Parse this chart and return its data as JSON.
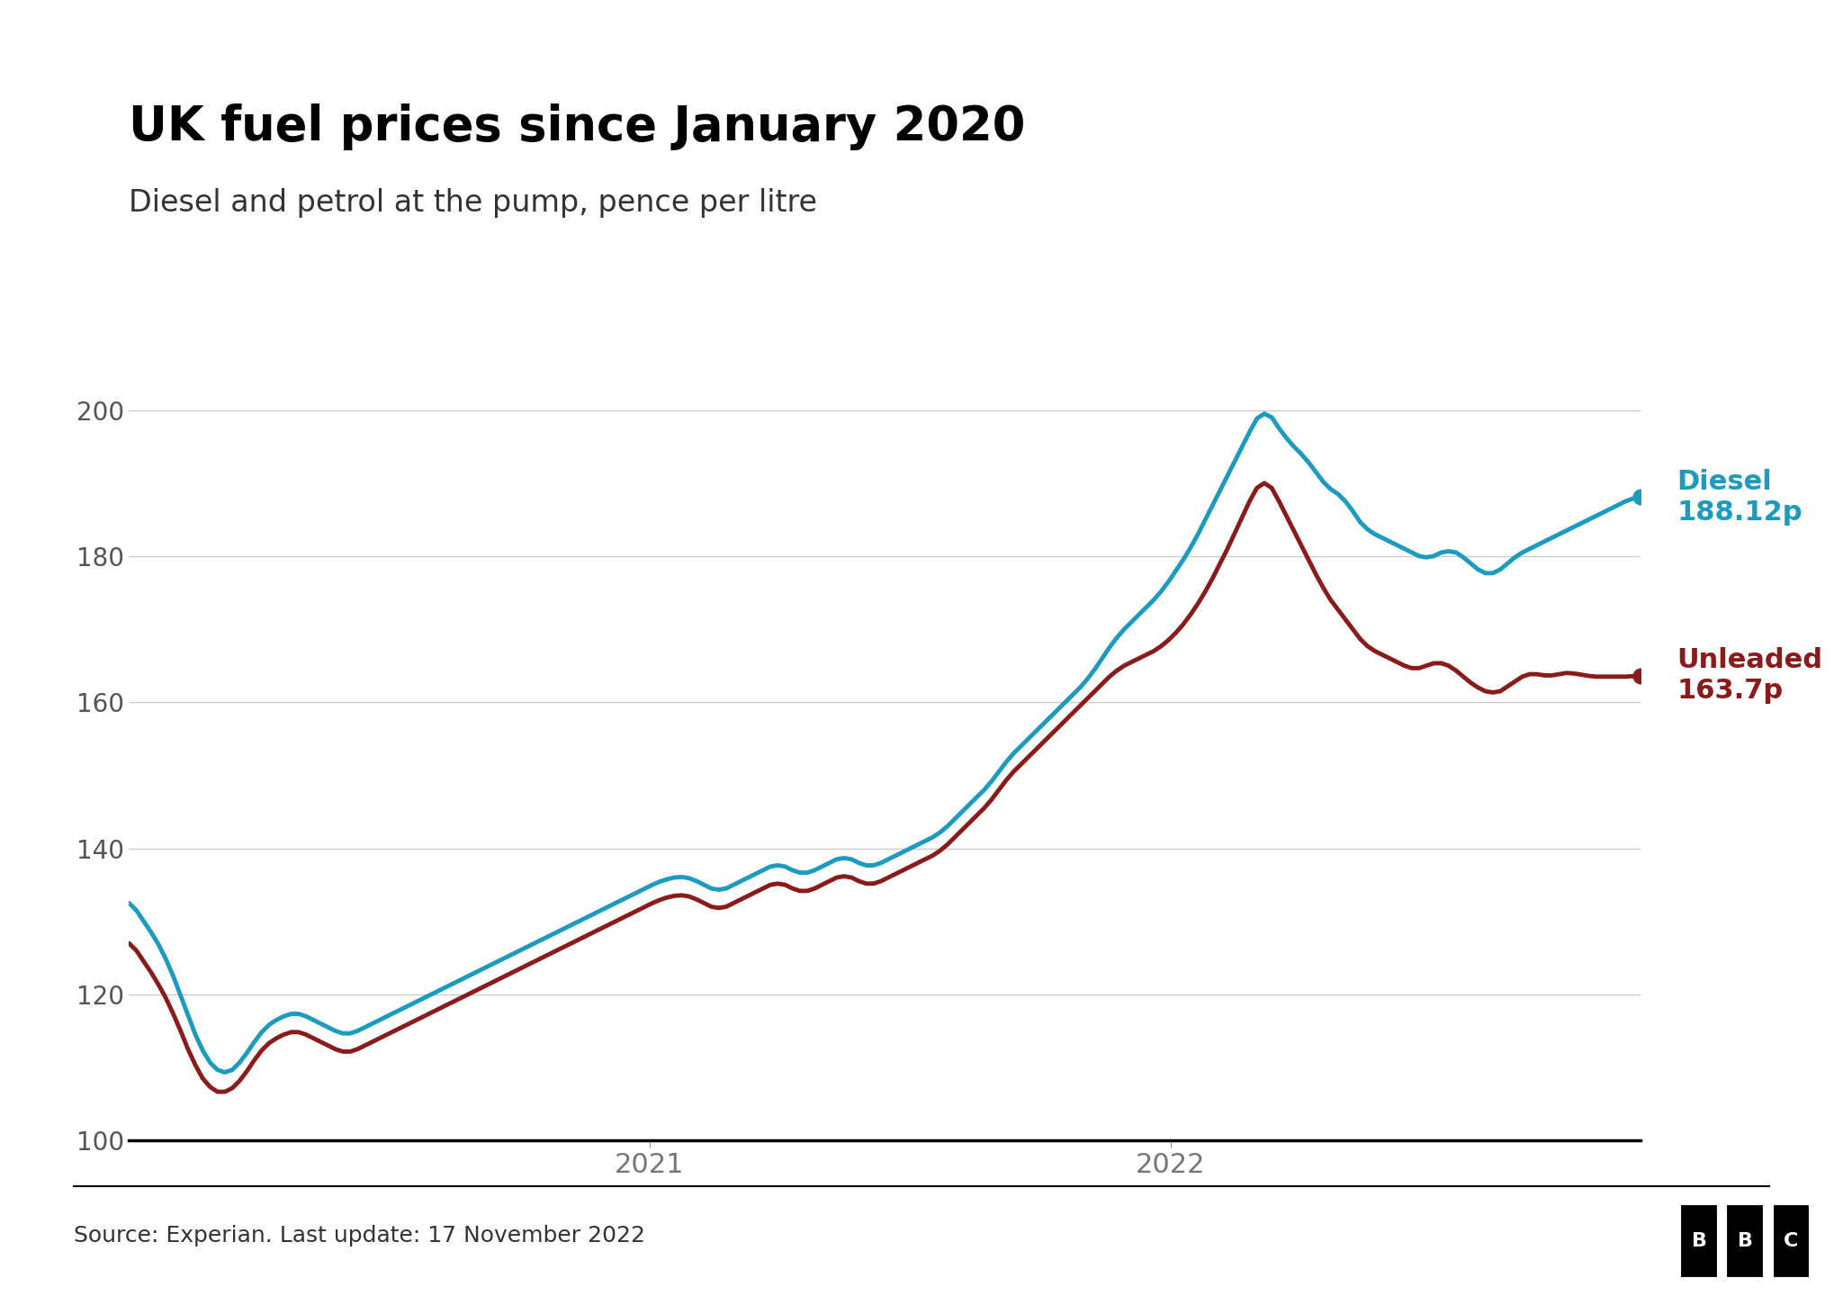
{
  "title": "UK fuel prices since January 2020",
  "subtitle": "Diesel and petrol at the pump, pence per litre",
  "source_text": "Source: Experian. Last update: 17 November 2022",
  "diesel_color": "#1a9bbf",
  "unleaded_color": "#8b1a1a",
  "diesel_label": "Diesel",
  "diesel_value": "188.12p",
  "unleaded_label": "Unleaded",
  "unleaded_value": "163.7p",
  "ylim": [
    100,
    210
  ],
  "yticks": [
    100,
    120,
    140,
    160,
    180,
    200
  ],
  "background_color": "#ffffff",
  "title_fontsize": 38,
  "subtitle_fontsize": 24,
  "diesel_data": [
    133.0,
    131.5,
    130.0,
    128.5,
    127.0,
    125.0,
    122.5,
    120.0,
    117.0,
    114.5,
    112.0,
    110.5,
    109.5,
    109.0,
    109.5,
    110.5,
    112.0,
    113.5,
    115.0,
    116.0,
    116.5,
    117.0,
    117.5,
    117.5,
    117.0,
    116.5,
    116.0,
    115.5,
    115.0,
    114.5,
    114.5,
    115.0,
    115.5,
    116.0,
    116.5,
    117.0,
    117.5,
    118.0,
    118.5,
    119.0,
    119.5,
    120.0,
    120.5,
    121.0,
    121.5,
    122.0,
    122.5,
    123.0,
    123.5,
    124.0,
    124.5,
    125.0,
    125.5,
    126.0,
    126.5,
    127.0,
    127.5,
    128.0,
    128.5,
    129.0,
    129.5,
    130.0,
    130.5,
    131.0,
    131.5,
    132.0,
    132.5,
    133.0,
    133.5,
    134.0,
    134.5,
    135.0,
    135.5,
    135.8,
    136.0,
    136.2,
    136.0,
    135.5,
    135.0,
    134.5,
    134.0,
    134.5,
    135.0,
    135.5,
    136.0,
    136.5,
    137.0,
    137.5,
    138.0,
    137.5,
    137.0,
    136.5,
    136.5,
    137.0,
    137.5,
    138.0,
    138.5,
    139.0,
    138.5,
    138.0,
    137.5,
    137.5,
    138.0,
    138.5,
    139.0,
    139.5,
    140.0,
    140.5,
    141.0,
    141.5,
    142.0,
    143.0,
    144.0,
    145.0,
    146.0,
    147.0,
    148.0,
    149.0,
    150.5,
    152.0,
    153.0,
    154.0,
    155.0,
    156.0,
    157.0,
    158.0,
    159.0,
    160.0,
    161.0,
    162.0,
    163.0,
    164.5,
    166.0,
    167.5,
    169.0,
    170.0,
    171.0,
    172.0,
    173.0,
    174.0,
    175.0,
    176.5,
    178.0,
    179.5,
    181.0,
    183.0,
    185.0,
    187.0,
    189.0,
    191.0,
    193.0,
    195.0,
    197.0,
    199.0,
    200.5,
    199.0,
    197.5,
    196.0,
    195.0,
    194.0,
    193.0,
    191.5,
    190.0,
    189.0,
    188.5,
    188.0,
    186.0,
    184.5,
    183.5,
    183.0,
    182.5,
    182.0,
    181.5,
    181.0,
    180.5,
    180.0,
    179.5,
    180.0,
    180.5,
    181.0,
    180.5,
    180.0,
    179.0,
    178.0,
    177.5,
    177.5,
    178.0,
    179.0,
    180.0,
    180.5,
    181.0,
    181.5,
    182.0,
    182.5,
    183.0,
    183.5,
    184.0,
    184.5,
    185.0,
    185.5,
    186.0,
    186.5,
    187.0,
    187.5,
    188.0,
    188.12
  ],
  "unleaded_data": [
    127.5,
    126.0,
    124.5,
    123.0,
    121.5,
    119.5,
    117.5,
    115.0,
    112.5,
    110.0,
    108.5,
    107.0,
    106.5,
    106.5,
    107.0,
    108.0,
    109.5,
    111.0,
    112.5,
    113.5,
    114.0,
    114.5,
    115.0,
    115.0,
    114.5,
    114.0,
    113.5,
    113.0,
    112.5,
    112.0,
    112.0,
    112.5,
    113.0,
    113.5,
    114.0,
    114.5,
    115.0,
    115.5,
    116.0,
    116.5,
    117.0,
    117.5,
    118.0,
    118.5,
    119.0,
    119.5,
    120.0,
    120.5,
    121.0,
    121.5,
    122.0,
    122.5,
    123.0,
    123.5,
    124.0,
    124.5,
    125.0,
    125.5,
    126.0,
    126.5,
    127.0,
    127.5,
    128.0,
    128.5,
    129.0,
    129.5,
    130.0,
    130.5,
    131.0,
    131.5,
    132.0,
    132.5,
    133.0,
    133.3,
    133.5,
    133.7,
    133.5,
    133.0,
    132.5,
    132.0,
    131.5,
    132.0,
    132.5,
    133.0,
    133.5,
    134.0,
    134.5,
    135.0,
    135.5,
    135.0,
    134.5,
    134.0,
    134.0,
    134.5,
    135.0,
    135.5,
    136.0,
    136.5,
    136.0,
    135.5,
    135.0,
    135.0,
    135.5,
    136.0,
    136.5,
    137.0,
    137.5,
    138.0,
    138.5,
    139.0,
    139.5,
    140.5,
    141.5,
    142.5,
    143.5,
    144.5,
    145.5,
    146.5,
    148.0,
    149.5,
    150.5,
    151.5,
    152.5,
    153.5,
    154.5,
    155.5,
    156.5,
    157.5,
    158.5,
    159.5,
    160.5,
    161.5,
    162.5,
    163.5,
    164.5,
    165.0,
    165.5,
    166.0,
    166.5,
    167.0,
    167.5,
    168.5,
    169.5,
    170.5,
    172.0,
    173.5,
    175.0,
    177.0,
    179.0,
    181.0,
    183.0,
    185.5,
    187.5,
    189.5,
    191.0,
    189.5,
    187.5,
    185.5,
    183.5,
    181.5,
    179.5,
    177.5,
    175.5,
    174.0,
    172.5,
    171.5,
    170.0,
    168.5,
    167.5,
    167.0,
    166.5,
    166.0,
    165.5,
    165.0,
    164.5,
    164.5,
    165.0,
    165.5,
    165.5,
    165.0,
    164.5,
    163.5,
    162.5,
    162.0,
    161.5,
    161.0,
    161.5,
    162.0,
    163.0,
    163.5,
    164.0,
    164.0,
    163.5,
    163.5,
    164.0,
    164.0,
    164.0,
    163.8,
    163.5,
    163.5,
    163.5,
    163.5,
    163.5,
    163.5,
    163.5,
    163.7
  ],
  "n_points": 206
}
